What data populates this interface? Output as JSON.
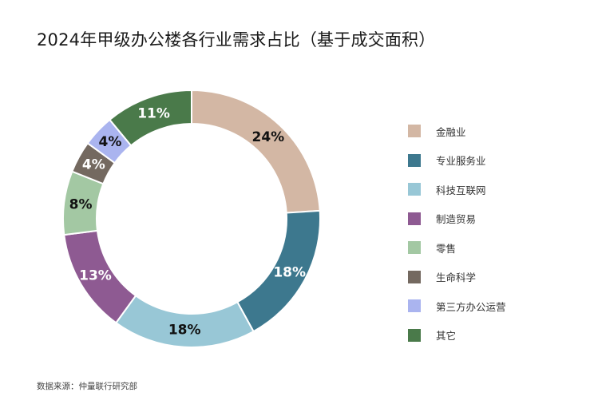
{
  "chart_data": {
    "type": "donut",
    "title": "2024年甲级办公楼各行业需求占比（基于成交面积）",
    "categories": [
      "金融业",
      "专业服务业",
      "科技互联网",
      "制造贸易",
      "零售",
      "生命科学",
      "第三方办公运营",
      "其它"
    ],
    "values": [
      24,
      18,
      18,
      13,
      8,
      4,
      4,
      11
    ],
    "labels": [
      "24%",
      "18%",
      "18%",
      "13%",
      "8%",
      "4%",
      "4%",
      "11%"
    ],
    "colors": [
      "#d3b7a4",
      "#3d788e",
      "#98c7d6",
      "#8e5a92",
      "#a3c8a3",
      "#746960",
      "#aab4ef",
      "#4a7a4a"
    ],
    "label_colors": [
      "#111111",
      "#ffffff",
      "#111111",
      "#ffffff",
      "#111111",
      "#ffffff",
      "#111111",
      "#ffffff"
    ],
    "legend_position": "right",
    "source": "数据来源：仲量联行研究部"
  }
}
